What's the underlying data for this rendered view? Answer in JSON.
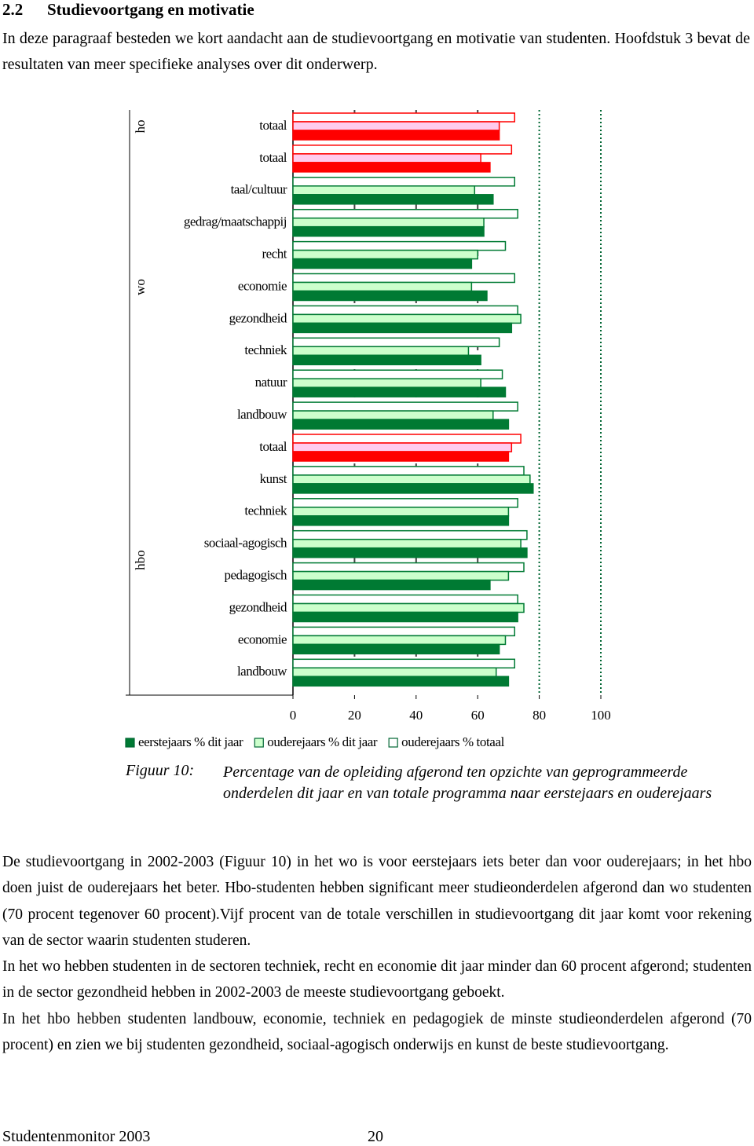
{
  "header": {
    "number": "2.2",
    "title": "Studievoortgang en motivatie"
  },
  "intro": "In deze paragraaf besteden we kort aandacht aan de studievoortgang en motivatie van studenten. Hoofdstuk 3 bevat de resultaten van meer specifieke analyses over dit onderwerp.",
  "chart_data": {
    "type": "bar",
    "orientation": "horizontal",
    "groups": [
      {
        "name": "ho",
        "categories": [
          "totaal"
        ]
      },
      {
        "name": "wo",
        "categories": [
          "totaal",
          "taal/cultuur",
          "gedrag/maatschappij",
          "recht",
          "economie",
          "gezondheid",
          "techniek",
          "natuur",
          "landbouw"
        ]
      },
      {
        "name": "hbo",
        "categories": [
          "totaal",
          "kunst",
          "techniek",
          "sociaal-agogisch",
          "pedagogisch",
          "gezondheid",
          "economie",
          "landbouw"
        ]
      }
    ],
    "series": [
      {
        "name": "eerstejaars % dit jaar",
        "color": "#007a33",
        "colors": [
          "#ff0000",
          "#ff0000",
          "#007a33",
          "#007a33",
          "#007a33",
          "#007a33",
          "#007a33",
          "#007a33",
          "#007a33",
          "#007a33",
          "#ff0000",
          "#007a33",
          "#007a33",
          "#007a33",
          "#007a33",
          "#007a33",
          "#007a33",
          "#007a33"
        ],
        "values": [
          67,
          64,
          65,
          62,
          58,
          63,
          71,
          61,
          69,
          70,
          70,
          78,
          70,
          76,
          64,
          73,
          67,
          70
        ]
      },
      {
        "name": "ouderejaars % dit jaar",
        "color": "#ccffcc",
        "colors": [
          "#ffccee",
          "#ffccee",
          "#ccffcc",
          "#ccffcc",
          "#ccffcc",
          "#ccffcc",
          "#ccffcc",
          "#ccffcc",
          "#ccffcc",
          "#ccffcc",
          "#ffccee",
          "#ccffcc",
          "#ccffcc",
          "#ccffcc",
          "#ccffcc",
          "#ccffcc",
          "#ccffcc",
          "#ccffcc"
        ],
        "values": [
          67,
          61,
          59,
          62,
          60,
          58,
          74,
          57,
          61,
          65,
          71,
          77,
          70,
          74,
          70,
          75,
          69,
          66
        ]
      },
      {
        "name": "ouderejaars % totaal",
        "color": "#ffffff",
        "colors": [
          "#ffffff",
          "#ffffff",
          "#ffffff",
          "#ffffff",
          "#ffffff",
          "#ffffff",
          "#ffffff",
          "#ffffff",
          "#ffffff",
          "#ffffff",
          "#ffffff",
          "#ffffff",
          "#ffffff",
          "#ffffff",
          "#ffffff",
          "#ffffff",
          "#ffffff",
          "#ffffff"
        ],
        "values": [
          72,
          71,
          72,
          73,
          69,
          72,
          73,
          67,
          68,
          73,
          74,
          75,
          73,
          76,
          75,
          73,
          72,
          72
        ]
      }
    ],
    "xlim": [
      0,
      100
    ],
    "xticks": [
      0,
      20,
      40,
      60,
      80,
      100
    ],
    "grid": true
  },
  "caption": {
    "label": "Figuur 10:",
    "text": "Percentage van de opleiding afgerond ten opzichte van geprogrammeerde onderdelen dit jaar en van totale programma naar eerstejaars en ouderejaars"
  },
  "paragraphs": [
    "De studievoortgang in 2002-2003 (Figuur 10) in het wo is voor eerstejaars iets beter dan voor ouderejaars; in het hbo doen juist de ouderejaars het beter. Hbo-studenten hebben significant meer studieonderdelen afgerond dan wo studenten (70 procent tegenover 60 procent).Vijf procent van de totale verschillen in studievoortgang dit jaar komt voor rekening van de sector waarin studenten studeren.",
    "In het wo hebben studenten in de sectoren techniek, recht en economie dit jaar minder dan 60 procent afgerond; studenten in de sector gezondheid hebben in 2002-2003 de meeste studievoortgang geboekt.",
    "In het hbo hebben studenten landbouw, economie, techniek en pedagogiek de minste studieonderdelen afgerond (70 procent) en zien we bij studenten gezondheid, sociaal-agogisch onderwijs en kunst de beste studievoortgang."
  ],
  "footer": {
    "publication": "Studentenmonitor 2003",
    "page": "20"
  }
}
